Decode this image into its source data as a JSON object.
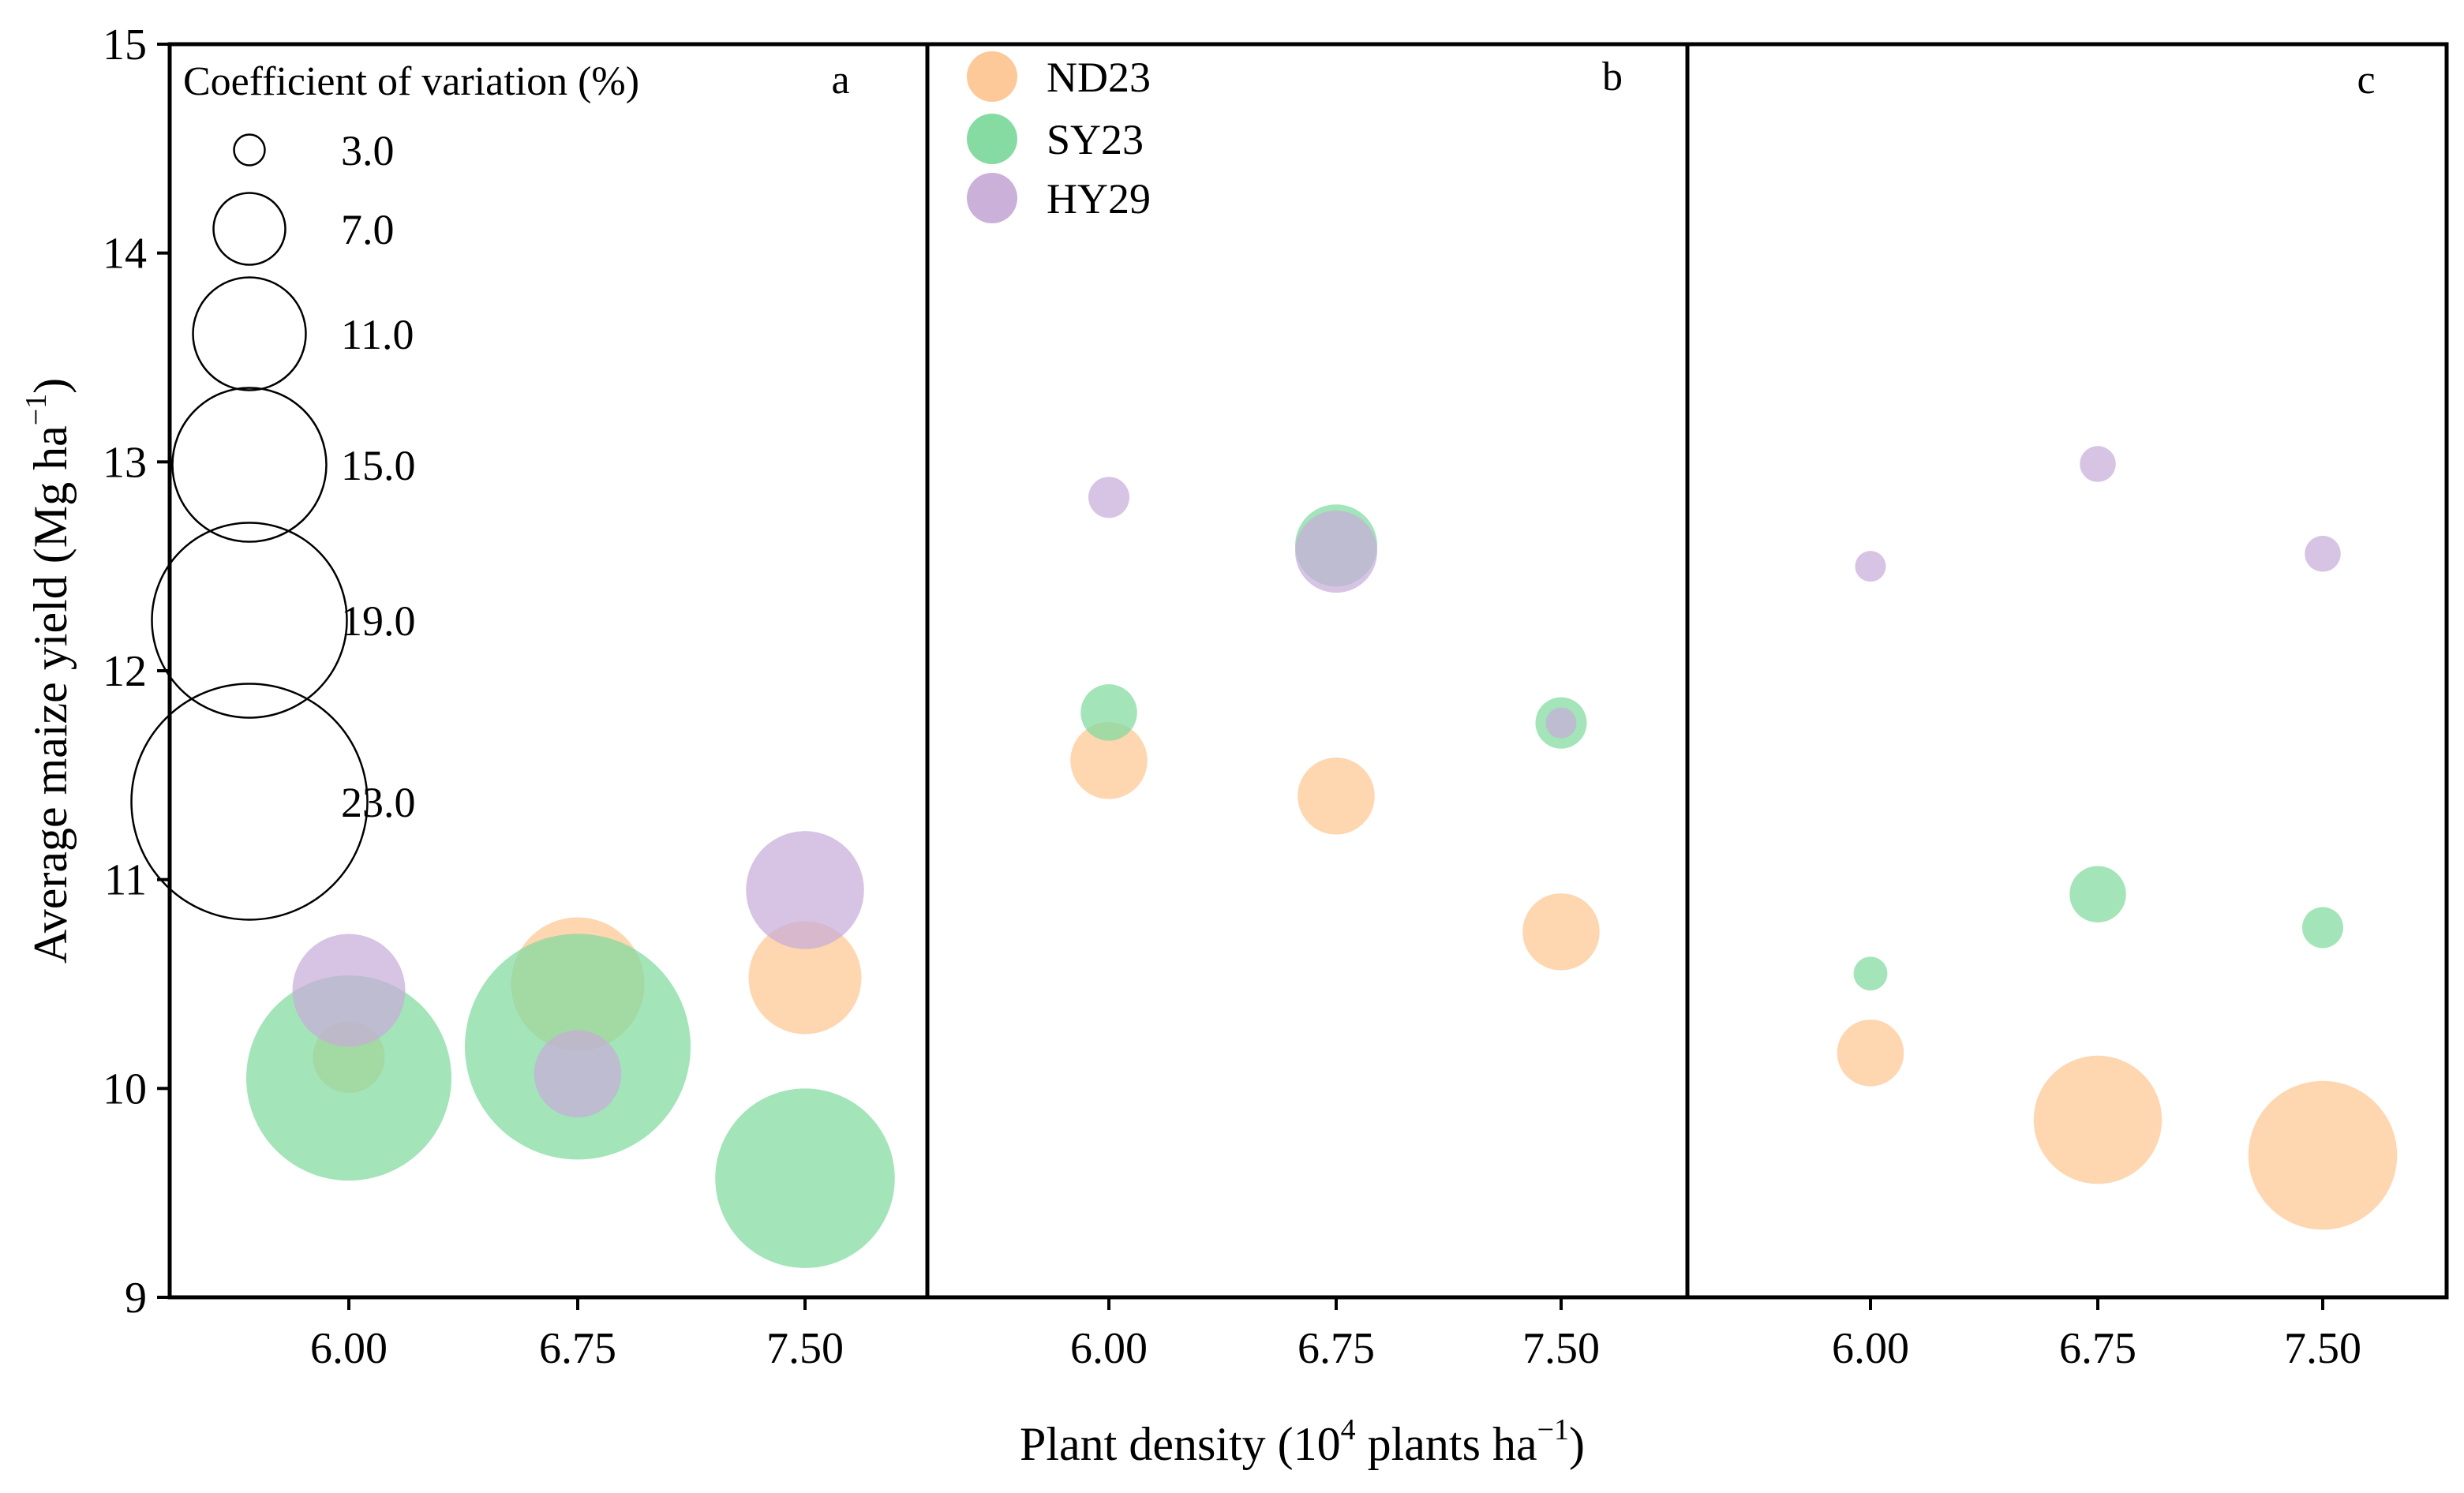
{
  "chart_data": {
    "type": "scatter",
    "subtype": "bubble",
    "xlabel": "Plant density (10",
    "xlabel_sup": "4",
    "xlabel_suffix": " plants ha",
    "xlabel_sup2": "−1",
    "xlabel_end": ")",
    "ylabel": "Average maize yield (Mg ha",
    "ylabel_sup": "−1",
    "ylabel_end": ")",
    "ylim": [
      9,
      15
    ],
    "yticks": [
      "9",
      "10",
      "11",
      "12",
      "13",
      "14",
      "15"
    ],
    "categories": [
      "6.00",
      "6.75",
      "7.50"
    ],
    "size_legend": {
      "title": "Coefficient of variation (%)",
      "values": [
        3.0,
        7.0,
        11.0,
        15.0,
        19.0,
        23.0
      ],
      "labels": [
        "3.0",
        "7.0",
        "11.0",
        "15.0",
        "19.0",
        "23.0"
      ]
    },
    "colors": {
      "ND23": "#fdc692",
      "SY23": "#7fd99e",
      "HY29": "#c8acd8"
    },
    "series_names": [
      "ND23",
      "SY23",
      "HY29"
    ],
    "panels": [
      {
        "label": "a",
        "points": [
          {
            "series": "ND23",
            "x": "6.00",
            "y": 10.15,
            "cv": 7.0
          },
          {
            "series": "ND23",
            "x": "6.75",
            "y": 10.5,
            "cv": 13.0
          },
          {
            "series": "ND23",
            "x": "7.50",
            "y": 10.53,
            "cv": 11.0
          },
          {
            "series": "SY23",
            "x": "6.00",
            "y": 10.05,
            "cv": 20.0
          },
          {
            "series": "SY23",
            "x": "6.75",
            "y": 10.2,
            "cv": 22.0
          },
          {
            "series": "SY23",
            "x": "7.50",
            "y": 9.57,
            "cv": 17.5
          },
          {
            "series": "HY29",
            "x": "6.00",
            "y": 10.47,
            "cv": 11.0
          },
          {
            "series": "HY29",
            "x": "6.75",
            "y": 10.07,
            "cv": 8.5
          },
          {
            "series": "HY29",
            "x": "7.50",
            "y": 10.95,
            "cv": 11.5
          }
        ]
      },
      {
        "label": "b",
        "points": [
          {
            "series": "ND23",
            "x": "6.00",
            "y": 11.57,
            "cv": 7.5
          },
          {
            "series": "ND23",
            "x": "6.75",
            "y": 11.4,
            "cv": 7.5
          },
          {
            "series": "ND23",
            "x": "7.50",
            "y": 10.75,
            "cv": 7.5
          },
          {
            "series": "SY23",
            "x": "6.00",
            "y": 11.8,
            "cv": 5.5
          },
          {
            "series": "SY23",
            "x": "6.75",
            "y": 12.6,
            "cv": 8.0
          },
          {
            "series": "SY23",
            "x": "7.50",
            "y": 11.75,
            "cv": 5.0
          },
          {
            "series": "HY29",
            "x": "6.00",
            "y": 12.83,
            "cv": 4.0
          },
          {
            "series": "HY29",
            "x": "6.75",
            "y": 12.57,
            "cv": 8.0
          },
          {
            "series": "HY29",
            "x": "7.50",
            "y": 11.75,
            "cv": 3.0
          }
        ]
      },
      {
        "label": "c",
        "points": [
          {
            "series": "ND23",
            "x": "6.00",
            "y": 10.17,
            "cv": 6.5
          },
          {
            "series": "ND23",
            "x": "6.75",
            "y": 9.85,
            "cv": 12.5
          },
          {
            "series": "ND23",
            "x": "7.50",
            "y": 9.68,
            "cv": 14.5
          },
          {
            "series": "SY23",
            "x": "6.00",
            "y": 10.55,
            "cv": 3.3
          },
          {
            "series": "SY23",
            "x": "6.75",
            "y": 10.93,
            "cv": 5.5
          },
          {
            "series": "SY23",
            "x": "7.50",
            "y": 10.77,
            "cv": 4.0
          },
          {
            "series": "HY29",
            "x": "6.00",
            "y": 12.5,
            "cv": 3.0
          },
          {
            "series": "HY29",
            "x": "6.75",
            "y": 12.99,
            "cv": 3.5
          },
          {
            "series": "HY29",
            "x": "7.50",
            "y": 12.56,
            "cv": 3.5
          }
        ]
      }
    ]
  }
}
